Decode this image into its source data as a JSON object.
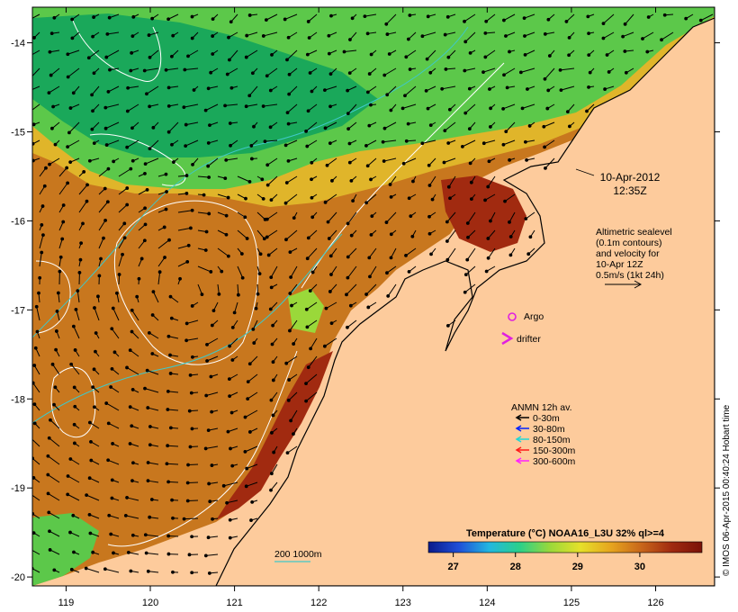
{
  "colors": {
    "land": "#fdcb9c",
    "coast": "#000000",
    "sst_warm": "#c8771e",
    "sst_hot": "#a12a10",
    "sst_mid": "#e0b52a",
    "sst_cool": "#5cc84a",
    "sst_cold": "#1aa85a",
    "contour": "#ffffff",
    "isobath": "#3fc8c8",
    "argo": "#e01fe0",
    "drifter": "#e01fe0"
  },
  "axes": {
    "x_ticks": [
      "119",
      "120",
      "121",
      "122",
      "123",
      "124",
      "125",
      "126"
    ],
    "y_ticks": [
      "-14",
      "-15",
      "-16",
      "-17",
      "-18",
      "-19",
      "-20"
    ],
    "lon_range": [
      118.6,
      126.7
    ],
    "lat_range": [
      -20.1,
      -13.6
    ]
  },
  "date_label": {
    "line1": "10-Apr-2012",
    "line2": "12:35Z"
  },
  "altimetry": {
    "line1": "Altimetric sealevel",
    "line2": "(0.1m contours)",
    "line3": "and velocity for",
    "line4": "10-Apr 12Z",
    "line5": "0.5m/s (1kt 24h)"
  },
  "platforms": {
    "argo": "Argo",
    "drifter": "drifter"
  },
  "anmn": {
    "title": "ANMN 12h av.",
    "items": [
      {
        "label": "0-30m",
        "color": "#000000"
      },
      {
        "label": "30-80m",
        "color": "#0022ff"
      },
      {
        "label": "80-150m",
        "color": "#1fd6d6"
      },
      {
        "label": "150-300m",
        "color": "#ff1a1a"
      },
      {
        "label": "300-600m",
        "color": "#ff22ff"
      }
    ]
  },
  "isobath_label": "200  1000m",
  "colorbar": {
    "title": "Temperature (°C) NOAA16_L3U 32% ql>=4",
    "ticks": [
      "27",
      "28",
      "29",
      "30"
    ],
    "stops": [
      "#0a1a8a",
      "#1f4fd8",
      "#22b7e0",
      "#2ad08a",
      "#9ad83a",
      "#e6e02a",
      "#e6a51e",
      "#c8661a",
      "#a02a10",
      "#7a1208"
    ]
  },
  "credit": "© IMOS 06-Apr-2015 00:40:24 Hobart time"
}
